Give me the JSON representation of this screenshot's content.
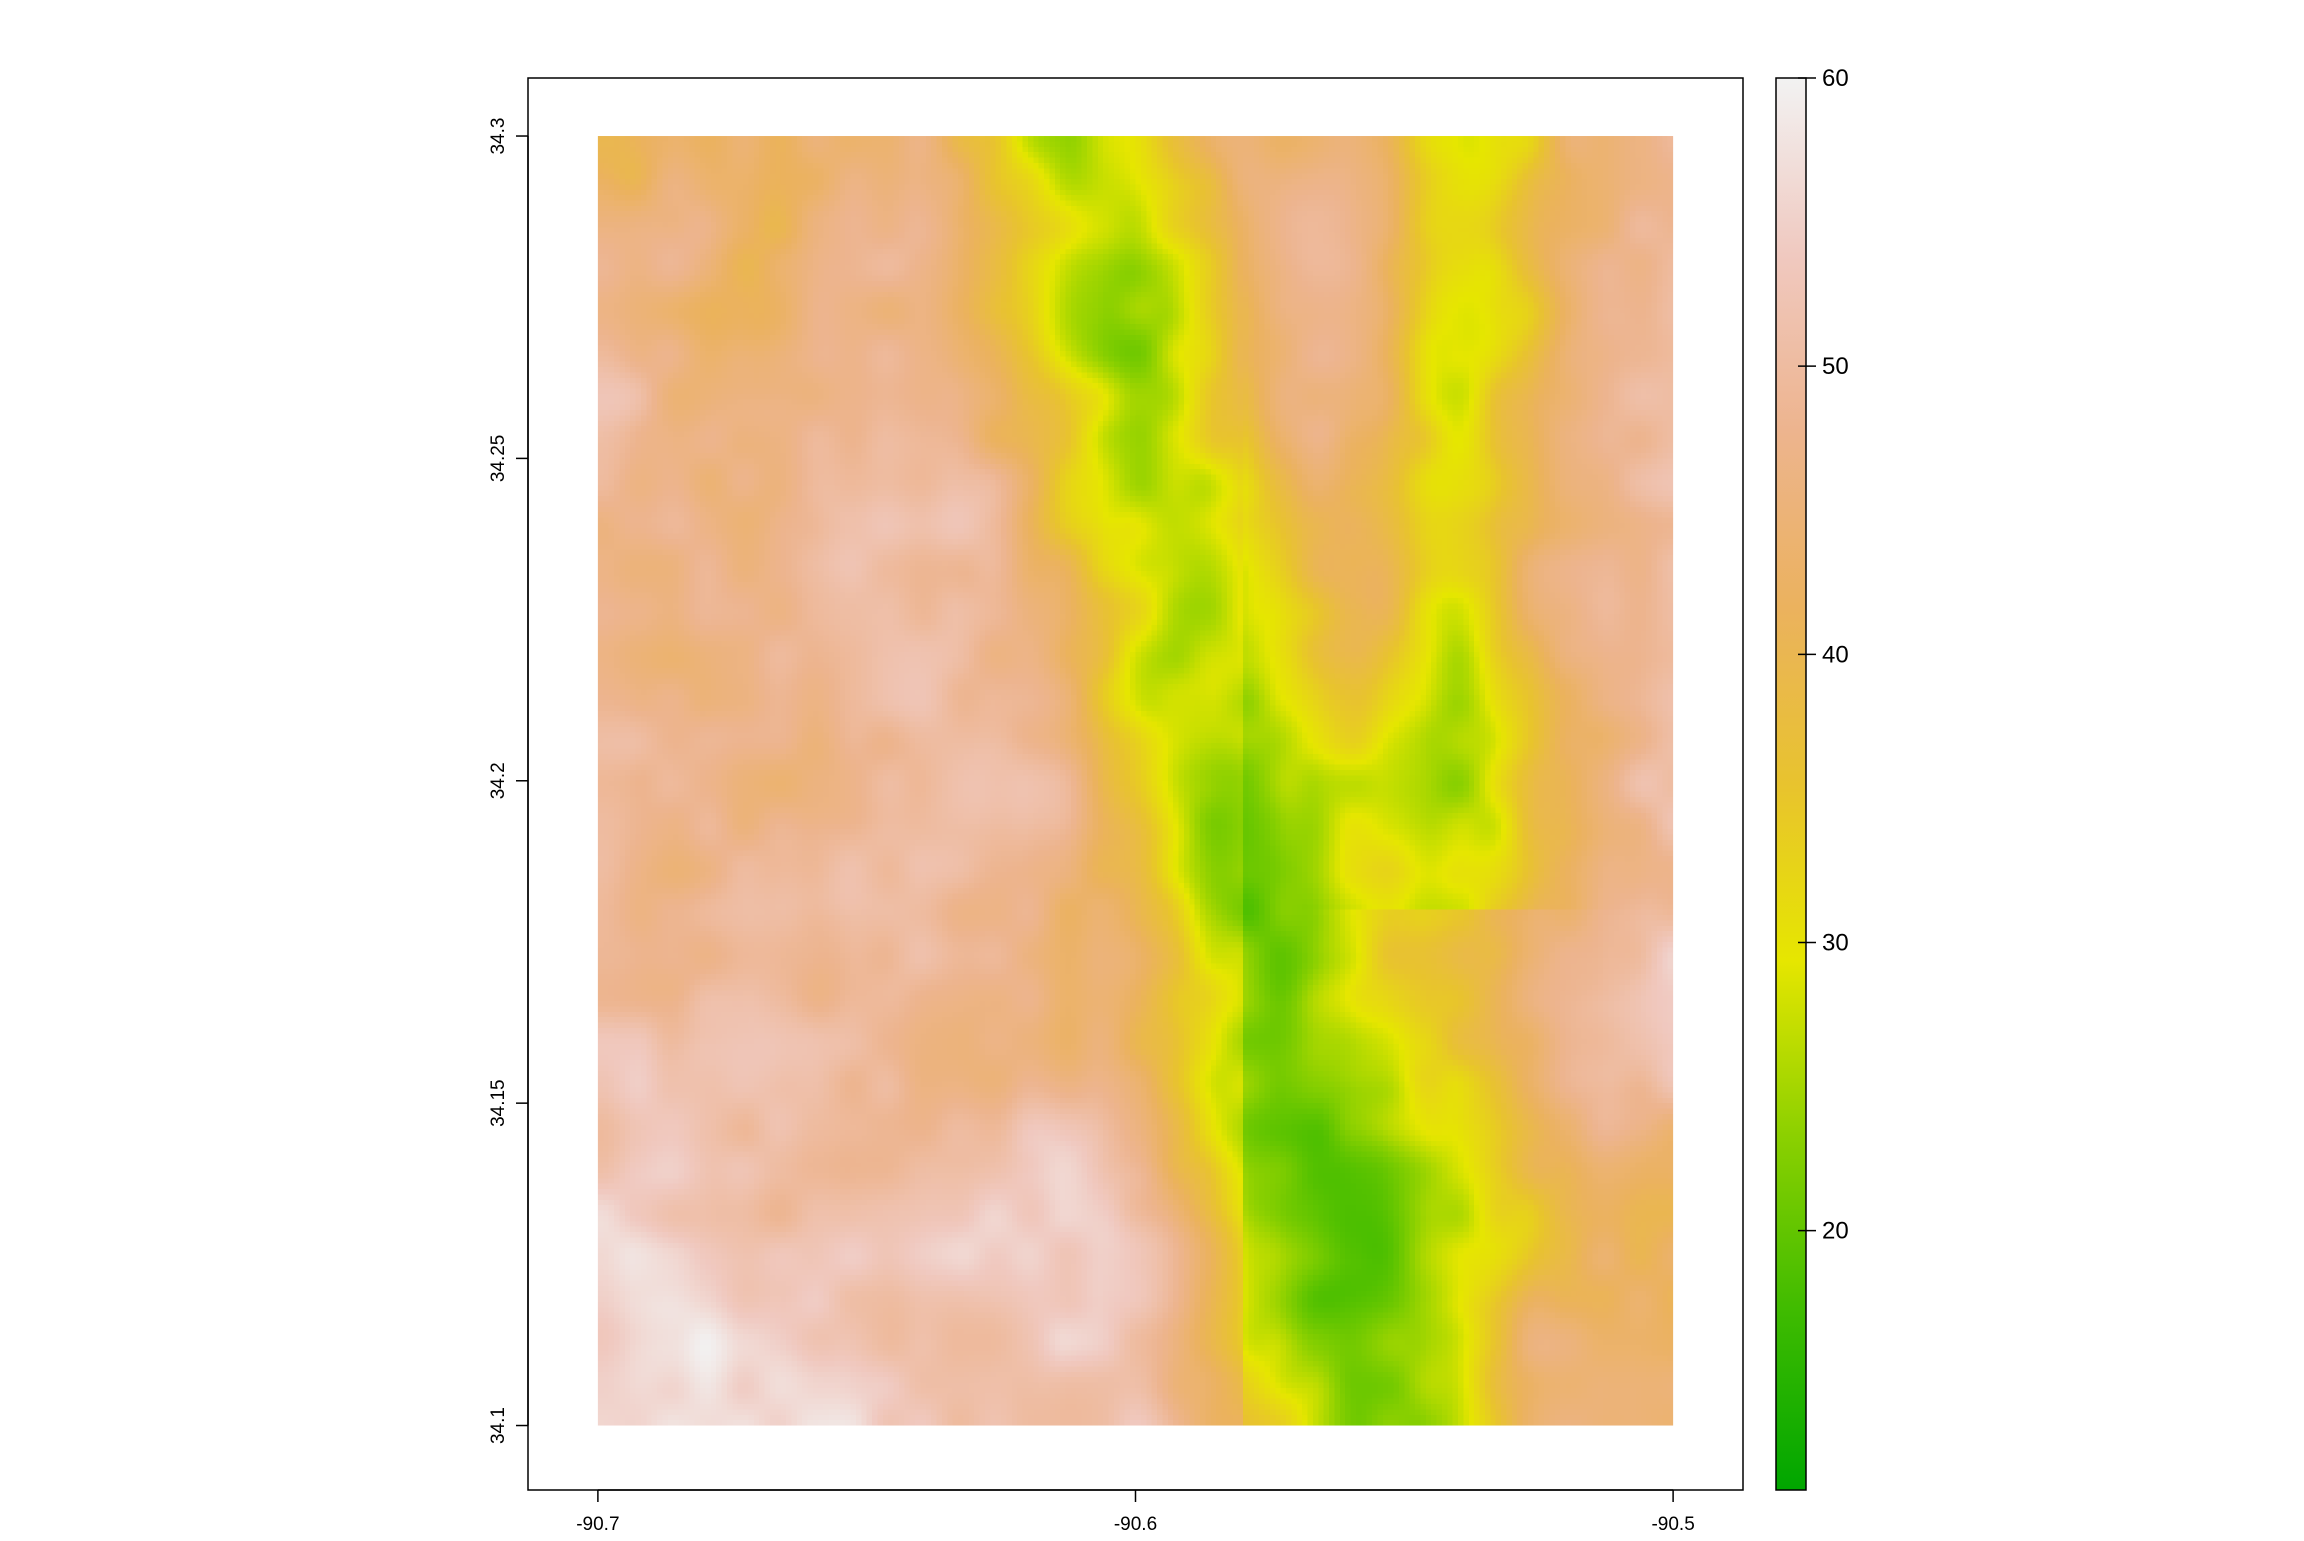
{
  "chart_data": {
    "type": "heatmap",
    "title": "",
    "xlabel": "",
    "ylabel": "",
    "xlim": [
      -90.713,
      -90.487
    ],
    "ylim": [
      34.09,
      34.309
    ],
    "raster_extent": {
      "x": [
        -90.7,
        -90.5
      ],
      "y": [
        34.1,
        34.3
      ]
    },
    "x_ticks": [
      {
        "value": -90.7,
        "label": "-90.7"
      },
      {
        "value": -90.6,
        "label": "-90.6"
      },
      {
        "value": -90.5,
        "label": "-90.5"
      }
    ],
    "y_ticks": [
      {
        "value": 34.1,
        "label": "34.1"
      },
      {
        "value": 34.15,
        "label": "34.15"
      },
      {
        "value": 34.2,
        "label": "34.2"
      },
      {
        "value": 34.25,
        "label": "34.25"
      },
      {
        "value": 34.3,
        "label": "34.3"
      }
    ],
    "legend": {
      "position": "right",
      "range": [
        11,
        60
      ],
      "ticks": [
        {
          "value": 20,
          "label": "20"
        },
        {
          "value": 30,
          "label": "30"
        },
        {
          "value": 40,
          "label": "40"
        },
        {
          "value": 50,
          "label": "50"
        },
        {
          "value": 60,
          "label": "60"
        }
      ],
      "palette": [
        "#00A600",
        "#3EBB00",
        "#8BD000",
        "#E6E600",
        "#E8C32E",
        "#EBB25E",
        "#EDB48E",
        "#F0C9C0",
        "#F2F2F2"
      ]
    }
  }
}
